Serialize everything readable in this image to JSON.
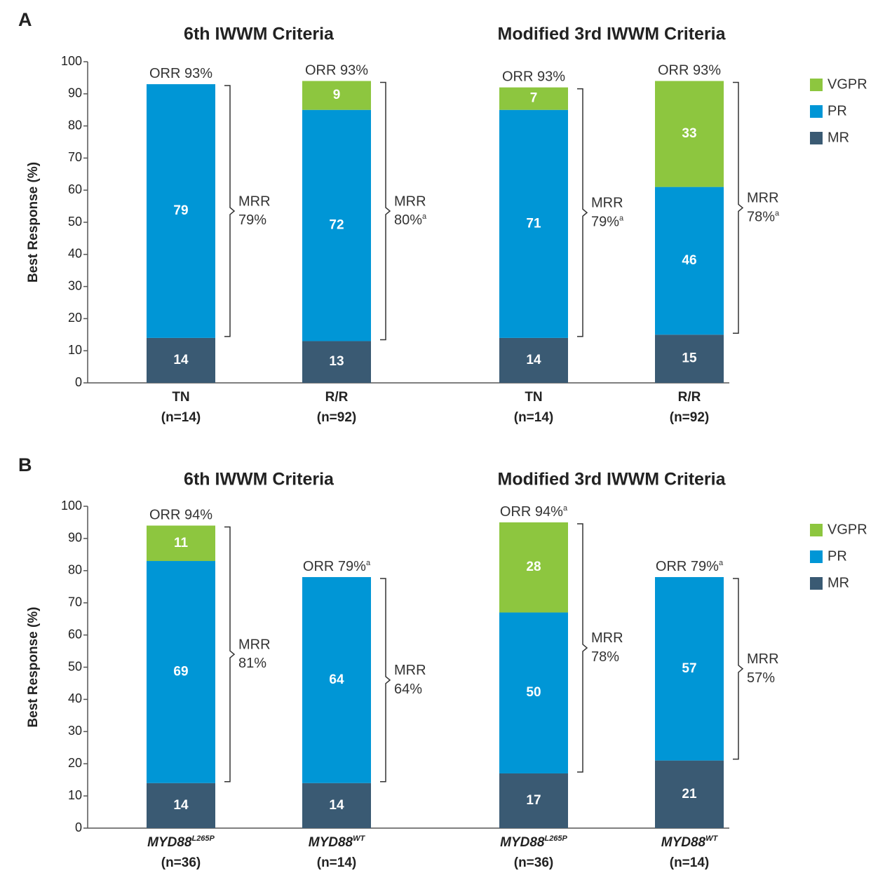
{
  "chart_data": [
    {
      "type": "bar",
      "stacked": true,
      "panel_label": "A",
      "ylabel": "Best Response (%)",
      "group_titles": [
        "6th IWWM Criteria",
        "Modified 3rd IWWM Criteria"
      ],
      "categories": [
        "TN",
        "R/R",
        "TN",
        "R/R"
      ],
      "category_notes": [
        "(n=14)",
        "(n=92)",
        "(n=14)",
        "(n=92)"
      ],
      "ylim": [
        0,
        100
      ],
      "yticks": [
        0,
        10,
        20,
        30,
        40,
        50,
        60,
        70,
        80,
        90,
        100
      ],
      "series": [
        {
          "name": "MR",
          "color": "#3a5a73",
          "values": [
            14,
            13,
            14,
            15
          ]
        },
        {
          "name": "PR",
          "color": "#0096d6",
          "values": [
            79,
            72,
            71,
            46
          ]
        },
        {
          "name": "VGPR",
          "color": "#8dc63f",
          "values": [
            null,
            9,
            7,
            33
          ]
        }
      ],
      "orr": [
        {
          "text": "ORR 93%"
        },
        {
          "text": "ORR 93%"
        },
        {
          "text": "ORR 93%"
        },
        {
          "text": "ORR 93%"
        }
      ],
      "mrr": [
        {
          "lines": [
            "MRR",
            "79%"
          ]
        },
        {
          "lines": [
            "MRR",
            "80%"
          ],
          "sup": "a"
        },
        {
          "lines": [
            "MRR",
            "79%"
          ],
          "sup": "a"
        },
        {
          "lines": [
            "MRR",
            "78%"
          ],
          "sup": "a"
        }
      ]
    },
    {
      "type": "bar",
      "stacked": true,
      "panel_label": "B",
      "ylabel": "Best Response (%)",
      "group_titles": [
        "6th IWWM Criteria",
        "Modified 3rd IWWM Criteria"
      ],
      "categories": [
        "MYD88",
        "MYD88",
        "MYD88",
        "MYD88"
      ],
      "category_superscripts": [
        "L265P",
        "WT",
        "L265P",
        "WT"
      ],
      "category_notes": [
        "(n=36)",
        "(n=14)",
        "(n=36)",
        "(n=14)"
      ],
      "ylim": [
        0,
        100
      ],
      "yticks": [
        0,
        10,
        20,
        30,
        40,
        50,
        60,
        70,
        80,
        90,
        100
      ],
      "series": [
        {
          "name": "MR",
          "color": "#3a5a73",
          "values": [
            14,
            14,
            17,
            21
          ]
        },
        {
          "name": "PR",
          "color": "#0096d6",
          "values": [
            69,
            64,
            50,
            57
          ]
        },
        {
          "name": "VGPR",
          "color": "#8dc63f",
          "values": [
            11,
            null,
            28,
            null
          ]
        }
      ],
      "orr": [
        {
          "text": "ORR 94%"
        },
        {
          "text": "ORR 79%",
          "sup": "a"
        },
        {
          "text": "ORR 94%",
          "sup": "a"
        },
        {
          "text": "ORR 79%",
          "sup": "a"
        }
      ],
      "mrr": [
        {
          "lines": [
            "MRR",
            "81%"
          ]
        },
        {
          "lines": [
            "MRR",
            "64%"
          ]
        },
        {
          "lines": [
            "MRR",
            "78%"
          ]
        },
        {
          "lines": [
            "MRR",
            "57%"
          ]
        }
      ]
    }
  ]
}
